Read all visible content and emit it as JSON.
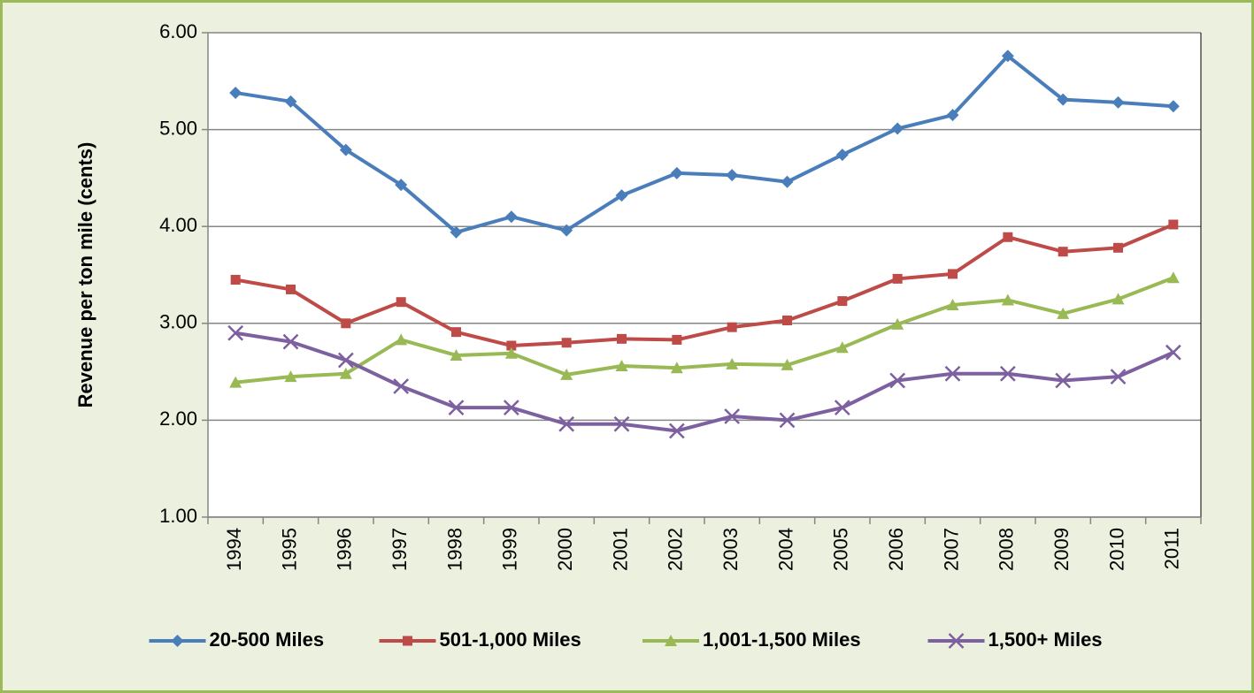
{
  "chart_data": {
    "type": "line",
    "y_label": "Revenue per ton mile (cents)",
    "categories": [
      "1994",
      "1995",
      "1996",
      "1997",
      "1998",
      "1999",
      "2000",
      "2001",
      "2002",
      "2003",
      "2004",
      "2005",
      "2006",
      "2007",
      "2008",
      "2009",
      "2010",
      "2011"
    ],
    "series": [
      {
        "name": "20-500 Miles",
        "color": "#4a7ebb",
        "marker": "diamond",
        "values": [
          5.38,
          5.29,
          4.79,
          4.43,
          3.94,
          4.1,
          3.96,
          4.32,
          4.55,
          4.53,
          4.46,
          4.74,
          5.01,
          5.15,
          5.76,
          5.31,
          5.28,
          5.24
        ]
      },
      {
        "name": "501-1,000 Miles",
        "color": "#be4b48",
        "marker": "square",
        "values": [
          3.45,
          3.35,
          3.0,
          3.22,
          2.91,
          2.77,
          2.8,
          2.84,
          2.83,
          2.96,
          3.03,
          3.23,
          3.46,
          3.51,
          3.89,
          3.74,
          3.78,
          4.02
        ]
      },
      {
        "name": "1,001-1,500 Miles",
        "color": "#98b954",
        "marker": "triangle",
        "values": [
          2.39,
          2.45,
          2.48,
          2.83,
          2.67,
          2.69,
          2.47,
          2.56,
          2.54,
          2.58,
          2.57,
          2.75,
          2.99,
          3.19,
          3.24,
          3.1,
          3.25,
          3.47
        ]
      },
      {
        "name": "1,500+ Miles",
        "color": "#7d60a0",
        "marker": "x",
        "values": [
          2.9,
          2.81,
          2.62,
          2.35,
          2.13,
          2.13,
          1.96,
          1.96,
          1.89,
          2.04,
          2.0,
          2.13,
          2.41,
          2.48,
          2.48,
          2.41,
          2.45,
          2.7
        ]
      }
    ],
    "ylim": [
      1,
      6
    ],
    "yticks": [
      {
        "value": 1,
        "label": "1.00"
      },
      {
        "value": 2,
        "label": "2.00"
      },
      {
        "value": 3,
        "label": "3.00"
      },
      {
        "value": 4,
        "label": "4.00"
      },
      {
        "value": 5,
        "label": "5.00"
      },
      {
        "value": 6,
        "label": "6.00"
      }
    ],
    "grid": true,
    "legend": "bottom"
  }
}
